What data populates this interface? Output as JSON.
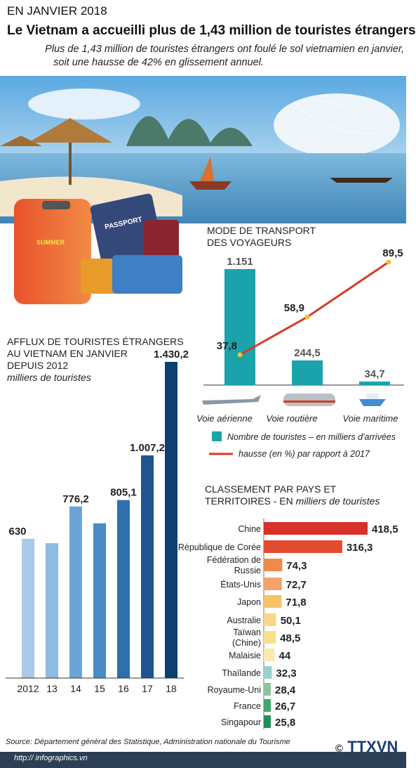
{
  "header": {
    "date": "EN JANVIER 2018",
    "title": "Le Vietnam a accueilli plus de 1,43 million de touristes étrangers",
    "subtitle_line1": "Plus de 1,43 million de touristes étrangers ont foulé le sol vietnamien en janvier,",
    "subtitle_line2": "soit une hausse de 42% en glissement annuel."
  },
  "illustrations": {
    "passport": "PASSPORT",
    "tag": "SUMMER"
  },
  "chart_data": [
    {
      "type": "bar",
      "title_line1": "AFFLUX DE TOURISTES ÉTRANGERS",
      "title_line2": "AU VIETNAM EN JANVIER",
      "title_line3": "DEPUIS 2012",
      "unit": "milliers de touristes",
      "categories": [
        "2012",
        "13",
        "14",
        "15",
        "16",
        "17",
        "18"
      ],
      "values": [
        630,
        610,
        776.2,
        700,
        805.1,
        1007.2,
        1430.2
      ],
      "data_labels": [
        "630",
        "",
        "776,2",
        "",
        "805,1",
        "1.007,2",
        "1.430,2"
      ],
      "colors": [
        "#a9cbea",
        "#8dbbe3",
        "#6ba5d8",
        "#4a8cc7",
        "#2f6fae",
        "#1c5590",
        "#0e3f73"
      ],
      "ylim": [
        0,
        1430.2
      ]
    },
    {
      "type": "bar+line",
      "title_line1": "MODE DE TRANSPORT",
      "title_line2": "DES VOYAGEURS",
      "categories": [
        "Voie aérienne",
        "Voie routière",
        "Voie maritime"
      ],
      "bar_values": [
        1151,
        244.5,
        34.7
      ],
      "bar_labels": [
        "1.151",
        "244,5",
        "34,7"
      ],
      "line_values": [
        37.8,
        58.9,
        89.5
      ],
      "line_labels": [
        "37,8",
        "58,9",
        "89,5"
      ],
      "bar_color": "#1aa3ab",
      "line_color": "#d63a24",
      "legend_bar": "Nombre de touristes – en milliers d'arrivées",
      "legend_line": "hausse (en %) par rapport à 2017"
    },
    {
      "type": "bar",
      "orientation": "horizontal",
      "title_line1": "CLASSEMENT PAR PAYS ET",
      "title_line2_a": "TERRITOIRES - EN ",
      "title_line2_b": "milliers de touristes",
      "categories": [
        "Chine",
        "République de Corée",
        "Fédération de Russie",
        "États-Unis",
        "Japon",
        "Australie",
        "Taïwan (Chine)",
        "Malaisie",
        "Thaïlande",
        "Royaume-Uni",
        "France",
        "Singapour"
      ],
      "category_lines": [
        [
          "Chine"
        ],
        [
          "République de Corée"
        ],
        [
          "Fédération de",
          "Russie"
        ],
        [
          "États-Unis"
        ],
        [
          "Japon"
        ],
        [
          "Australie"
        ],
        [
          "Taïwan",
          "(Chine)"
        ],
        [
          "Malaisie"
        ],
        [
          "Thaïlande"
        ],
        [
          "Royaume-Uni"
        ],
        [
          "France"
        ],
        [
          "Singapour"
        ]
      ],
      "values": [
        418.5,
        316.3,
        74.3,
        72.7,
        71.8,
        50.1,
        48.5,
        44,
        32.3,
        28.4,
        26.7,
        25.8
      ],
      "value_labels": [
        "418,5",
        "316,3",
        "74,3",
        "72,7",
        "71,8",
        "50,1",
        "48,5",
        "44",
        "32,3",
        "28,4",
        "26,7",
        "25,8"
      ],
      "colors": [
        "#d8302a",
        "#e34a32",
        "#ee8a4a",
        "#f2a46a",
        "#f5c46a",
        "#f8d78a",
        "#f8e08a",
        "#f9ebb0",
        "#9ccfcf",
        "#8bc39b",
        "#43a86a",
        "#1f8f52"
      ]
    }
  ],
  "footer": {
    "source": "Source: Département général des Statistique, Administration nationale du Tourisme",
    "logo": "TTXVN",
    "copyright": "©",
    "url": "http:// infographics.vn"
  }
}
